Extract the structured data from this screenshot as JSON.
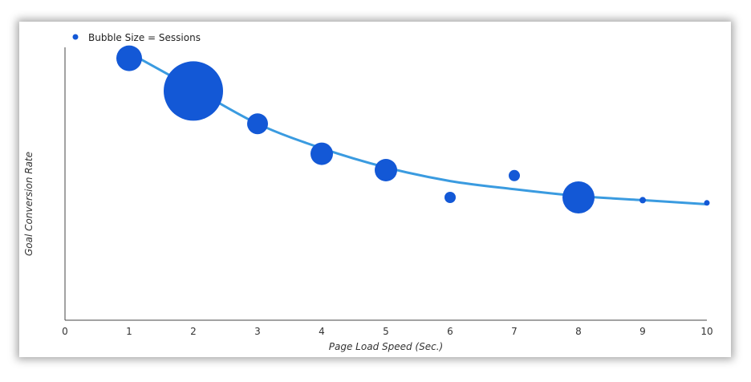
{
  "chart_data": {
    "type": "scatter",
    "subtype": "bubble",
    "xlabel": "Page Load Speed (Sec.)",
    "ylabel": "Goal Conversion Rate",
    "legend": {
      "label": "Bubble Size = Sessions",
      "placement": "top-left"
    },
    "xlim": [
      0,
      10
    ],
    "ylim": [
      0,
      1
    ],
    "x_ticks": [
      0,
      1,
      2,
      3,
      4,
      5,
      6,
      7,
      8,
      9,
      10
    ],
    "y_ticks_shown": false,
    "series": [
      {
        "points": [
          {
            "x": 1,
            "y": 0.96,
            "size": 16
          },
          {
            "x": 2,
            "y": 0.84,
            "size": 37
          },
          {
            "x": 3,
            "y": 0.72,
            "size": 13
          },
          {
            "x": 4,
            "y": 0.61,
            "size": 14
          },
          {
            "x": 5,
            "y": 0.55,
            "size": 14
          },
          {
            "x": 6,
            "y": 0.45,
            "size": 7
          },
          {
            "x": 7,
            "y": 0.53,
            "size": 7
          },
          {
            "x": 8,
            "y": 0.45,
            "size": 20
          },
          {
            "x": 9,
            "y": 0.44,
            "size": 4
          },
          {
            "x": 10,
            "y": 0.43,
            "size": 3.5
          }
        ]
      }
    ],
    "trendline": {
      "x": [
        1,
        2,
        3,
        4,
        5,
        6,
        7,
        8,
        9,
        10
      ],
      "y": [
        0.98,
        0.85,
        0.72,
        0.63,
        0.56,
        0.51,
        0.48,
        0.455,
        0.44,
        0.425
      ]
    },
    "colors": {
      "bubble": "#1358d6",
      "trendline": "#3a9be0",
      "axis": "#444444"
    }
  }
}
